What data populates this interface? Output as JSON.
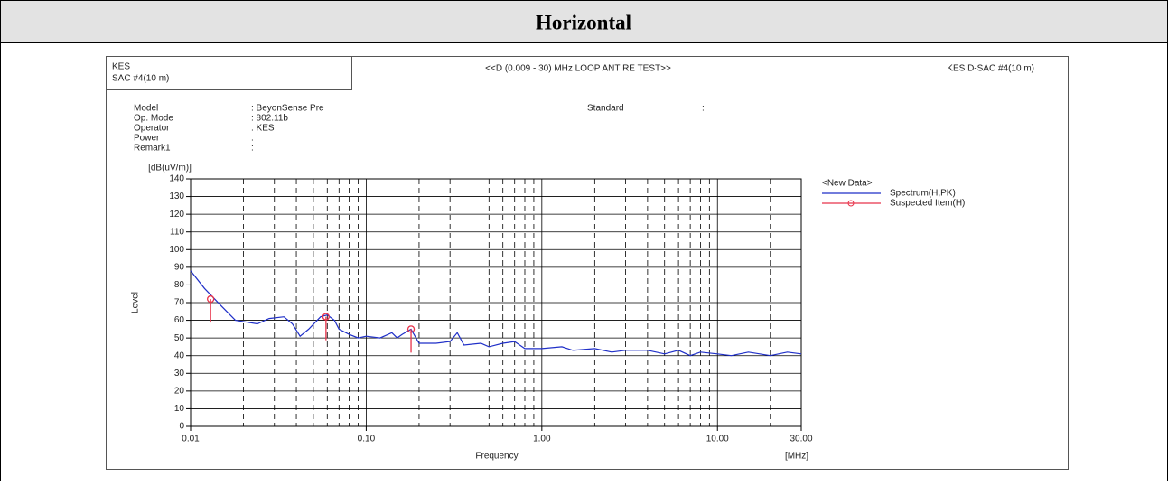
{
  "header": {
    "title": "Horizontal"
  },
  "report": {
    "site": [
      "KES",
      "SAC #4(10 m)"
    ],
    "test_title": "<<D (0.009 - 30) MHz LOOP ANT RE TEST>>",
    "site_right": "KES D-SAC #4(10 m)",
    "fields": [
      {
        "label": "Model",
        "value": ": BeyonSense Pre"
      },
      {
        "label": "Op. Mode",
        "value": ": 802.11b"
      },
      {
        "label": "Operator",
        "value": ": KES"
      },
      {
        "label": "Power",
        "value": ":"
      },
      {
        "label": "Remark1",
        "value": ":"
      }
    ],
    "standard": {
      "label": "Standard",
      "value": ":"
    }
  },
  "chart_data": {
    "type": "line",
    "y_unit": "[dB(uV/m)]",
    "ylabel": "Level",
    "xlabel": "Frequency",
    "x_unit": "[MHz]",
    "xscale": "log",
    "xlim": [
      0.01,
      30
    ],
    "xticks": [
      0.01,
      {
        "value": 0.1,
        "label": "0.10"
      },
      {
        "value": 1,
        "label": "1.00"
      },
      {
        "value": 10,
        "label": "10.00"
      },
      {
        "value": 30,
        "label": "30.00"
      }
    ],
    "xgrid_minor": [
      0.02,
      0.03,
      0.04,
      0.05,
      0.06,
      0.07,
      0.08,
      0.09,
      0.2,
      0.3,
      0.4,
      0.5,
      0.6,
      0.7,
      0.8,
      0.9,
      2,
      3,
      4,
      5,
      6,
      7,
      8,
      9,
      20
    ],
    "ylim": [
      0,
      140
    ],
    "yticks": [
      0,
      10,
      20,
      30,
      40,
      50,
      60,
      70,
      80,
      90,
      100,
      110,
      120,
      130,
      140
    ],
    "grid": true,
    "legend_title": "<New Data>",
    "series": [
      {
        "name": "Spectrum(H,PK)",
        "color": "#1f2fc8",
        "x": [
          0.01,
          0.012,
          0.015,
          0.018,
          0.024,
          0.028,
          0.034,
          0.038,
          0.042,
          0.047,
          0.055,
          0.06,
          0.066,
          0.07,
          0.08,
          0.09,
          0.1,
          0.12,
          0.14,
          0.15,
          0.16,
          0.18,
          0.2,
          0.25,
          0.3,
          0.33,
          0.36,
          0.45,
          0.5,
          0.6,
          0.7,
          0.8,
          1,
          1.3,
          1.5,
          2,
          2.5,
          3,
          4,
          5,
          6,
          7,
          8,
          10,
          12,
          15,
          20,
          25,
          30
        ],
        "values": [
          88,
          78,
          68,
          60,
          58,
          61,
          62,
          58,
          51,
          55,
          62,
          63,
          60,
          55,
          52,
          50,
          51,
          50,
          53,
          50,
          52,
          55,
          47,
          47,
          48,
          53,
          46,
          47,
          45,
          47,
          48,
          44,
          44,
          45,
          43,
          44,
          42,
          43,
          43,
          41,
          43,
          40,
          42,
          41,
          40,
          42,
          40,
          42,
          41
        ]
      },
      {
        "name": "Suspected Item(H)",
        "color": "#e8334a",
        "type": "scatter",
        "x": [
          0.013,
          0.059,
          0.18
        ],
        "values": [
          72,
          62,
          55
        ]
      }
    ]
  }
}
